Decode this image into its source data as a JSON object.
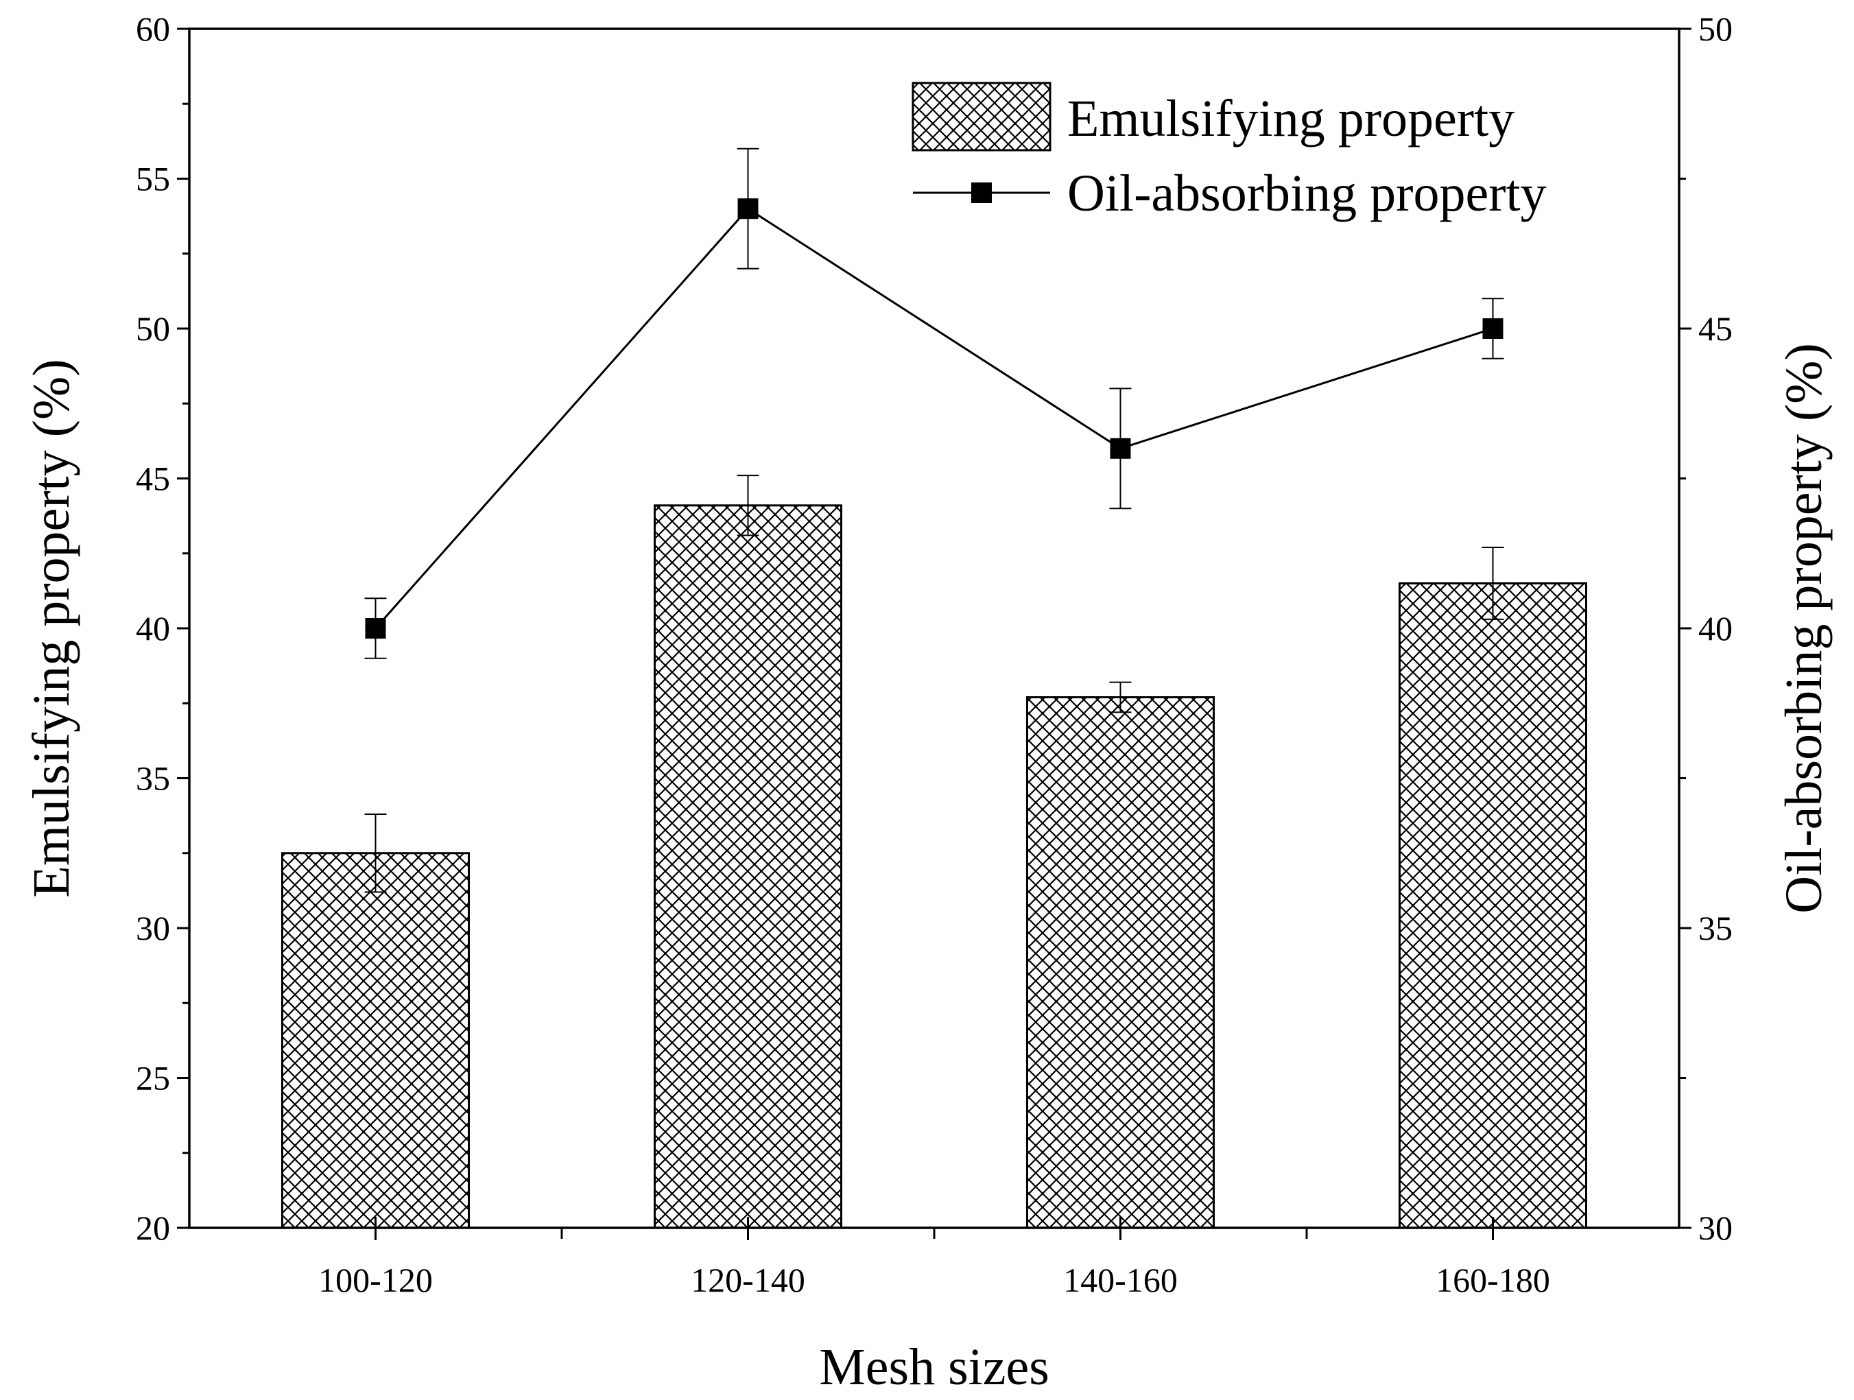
{
  "chart_data": {
    "type": "bar+line",
    "categories": [
      "100-120",
      "120-140",
      "140-160",
      "160-180"
    ],
    "xlabel": "Mesh sizes",
    "ylabel_left": "Emulsifying property (%)",
    "ylabel_right": "Oil-absorbing property (%)",
    "ylim_left": [
      20,
      60
    ],
    "ylim_right": [
      30,
      50
    ],
    "yticks_left": [
      20,
      25,
      30,
      35,
      40,
      45,
      50,
      55,
      60
    ],
    "yticks_right": [
      30,
      35,
      40,
      45,
      50
    ],
    "series": [
      {
        "name": "Emulsifying property",
        "type": "bar",
        "axis": "left",
        "pattern": "crosshatch",
        "values": [
          32.5,
          44.1,
          37.7,
          41.5
        ],
        "errors": [
          1.3,
          1.0,
          0.5,
          1.2
        ]
      },
      {
        "name": "Oil-absorbing property",
        "type": "line",
        "axis": "right",
        "marker": "square",
        "values": [
          40.0,
          47.0,
          43.0,
          45.0
        ],
        "errors": [
          0.5,
          1.0,
          1.0,
          0.5
        ]
      }
    ],
    "legend_position": "top-right",
    "grid": false
  }
}
